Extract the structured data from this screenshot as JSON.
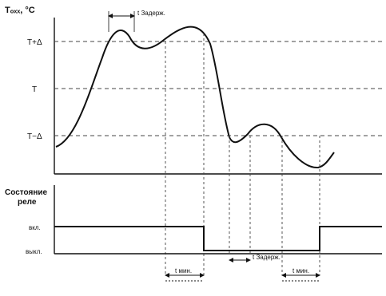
{
  "top_chart": {
    "y_axis_label": "Tₒₓₓ, °C",
    "levels": {
      "upper": "T+Δ",
      "mid": "T",
      "lower": "T−Δ"
    },
    "annotation_delay": "t Задерж."
  },
  "bottom_chart": {
    "title_line1": "Состояние",
    "title_line2": "реле",
    "state_on": "вкл.",
    "state_off": "выкл.",
    "annotation_min": "t мин.",
    "annotation_delay": "t Задерж.",
    "annotation_min_right": "t мин."
  }
}
